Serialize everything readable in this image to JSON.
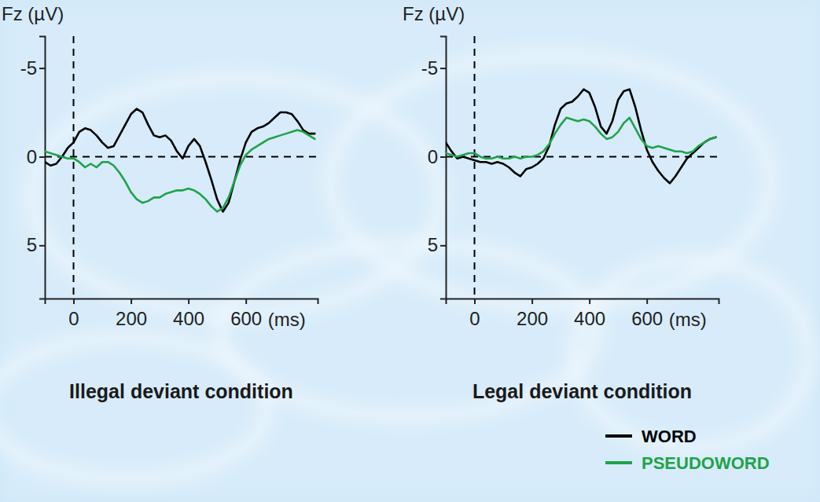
{
  "chart_data": [
    {
      "type": "line",
      "title": "Illegal deviant condition",
      "x_label": "(ms)",
      "y_label": "Fz (µV)",
      "x": [
        -100,
        -80,
        -60,
        -40,
        -20,
        0,
        20,
        40,
        60,
        80,
        100,
        120,
        140,
        160,
        180,
        200,
        220,
        240,
        260,
        280,
        300,
        320,
        340,
        360,
        380,
        400,
        420,
        440,
        460,
        480,
        500,
        520,
        540,
        560,
        580,
        600,
        620,
        640,
        660,
        680,
        700,
        720,
        740,
        760,
        780,
        800,
        820,
        840
      ],
      "xlim": [
        -100,
        850
      ],
      "xticks": [
        0,
        200,
        400,
        600
      ],
      "ylim": [
        -6.8,
        8
      ],
      "yticks": [
        -5,
        0,
        5
      ],
      "series": [
        {
          "color": "#000000",
          "values": [
            0.3,
            0.5,
            0.4,
            0.0,
            -0.5,
            -0.8,
            -1.4,
            -1.6,
            -1.5,
            -1.2,
            -0.8,
            -0.5,
            -0.6,
            -1.2,
            -1.8,
            -2.4,
            -2.7,
            -2.5,
            -1.8,
            -1.2,
            -1.1,
            -1.2,
            -0.9,
            -0.3,
            0.1,
            -0.6,
            -1.0,
            -0.6,
            0.3,
            1.3,
            2.4,
            3.1,
            2.6,
            1.4,
            0.2,
            -0.8,
            -1.4,
            -1.6,
            -1.7,
            -1.9,
            -2.2,
            -2.5,
            -2.5,
            -2.4,
            -2.0,
            -1.5,
            -1.3,
            -1.3
          ]
        },
        {
          "color": "#1fa34a",
          "values": [
            -0.3,
            -0.2,
            -0.1,
            0.0,
            0.1,
            0.1,
            0.3,
            0.6,
            0.4,
            0.6,
            0.3,
            0.3,
            0.5,
            0.9,
            1.4,
            2.0,
            2.4,
            2.6,
            2.5,
            2.3,
            2.3,
            2.1,
            2.0,
            1.9,
            1.9,
            1.8,
            1.9,
            2.1,
            2.4,
            2.8,
            3.1,
            2.9,
            2.3,
            1.4,
            0.5,
            -0.1,
            -0.4,
            -0.6,
            -0.8,
            -1.0,
            -1.1,
            -1.2,
            -1.3,
            -1.4,
            -1.5,
            -1.4,
            -1.2,
            -1.0
          ]
        }
      ]
    },
    {
      "type": "line",
      "title": "Legal deviant condition",
      "x_label": "(ms)",
      "y_label": "Fz (µV)",
      "x": [
        -100,
        -80,
        -60,
        -40,
        -20,
        0,
        20,
        40,
        60,
        80,
        100,
        120,
        140,
        160,
        180,
        200,
        220,
        240,
        260,
        280,
        300,
        320,
        340,
        360,
        380,
        400,
        420,
        440,
        460,
        480,
        500,
        520,
        540,
        560,
        580,
        600,
        620,
        640,
        660,
        680,
        700,
        720,
        740,
        760,
        780,
        800,
        820,
        840
      ],
      "xlim": [
        -100,
        850
      ],
      "xticks": [
        0,
        200,
        400,
        600
      ],
      "ylim": [
        -6.8,
        8
      ],
      "yticks": [
        -5,
        0,
        5
      ],
      "legend": "lower right",
      "series": [
        {
          "name": "WORD",
          "color": "#000000",
          "values": [
            -0.8,
            -0.3,
            0.1,
            0.0,
            0.1,
            0.2,
            0.3,
            0.3,
            0.4,
            0.3,
            0.4,
            0.6,
            0.9,
            1.1,
            0.7,
            0.6,
            0.4,
            0.1,
            -0.6,
            -1.8,
            -2.7,
            -3.0,
            -3.1,
            -3.4,
            -3.8,
            -3.6,
            -2.8,
            -1.7,
            -1.3,
            -2.0,
            -3.2,
            -3.7,
            -3.8,
            -2.8,
            -1.5,
            -0.4,
            0.3,
            0.8,
            1.2,
            1.5,
            1.1,
            0.6,
            0.1,
            -0.2,
            -0.5,
            -0.8,
            -1.0,
            -1.1
          ]
        },
        {
          "name": "PSEUDOWORD",
          "color": "#1fa34a",
          "values": [
            -0.2,
            -0.1,
            0.0,
            -0.1,
            -0.2,
            -0.2,
            0.0,
            0.1,
            0.1,
            0.0,
            0.1,
            0.1,
            0.0,
            0.1,
            0.0,
            0.0,
            -0.1,
            -0.3,
            -0.7,
            -1.3,
            -1.8,
            -2.2,
            -2.1,
            -2.0,
            -2.1,
            -2.0,
            -1.7,
            -1.3,
            -1.0,
            -1.1,
            -1.4,
            -1.9,
            -2.2,
            -1.6,
            -1.0,
            -0.6,
            -0.5,
            -0.6,
            -0.5,
            -0.4,
            -0.3,
            -0.3,
            -0.2,
            -0.3,
            -0.6,
            -0.8,
            -1.0,
            -1.1
          ]
        }
      ]
    }
  ]
}
